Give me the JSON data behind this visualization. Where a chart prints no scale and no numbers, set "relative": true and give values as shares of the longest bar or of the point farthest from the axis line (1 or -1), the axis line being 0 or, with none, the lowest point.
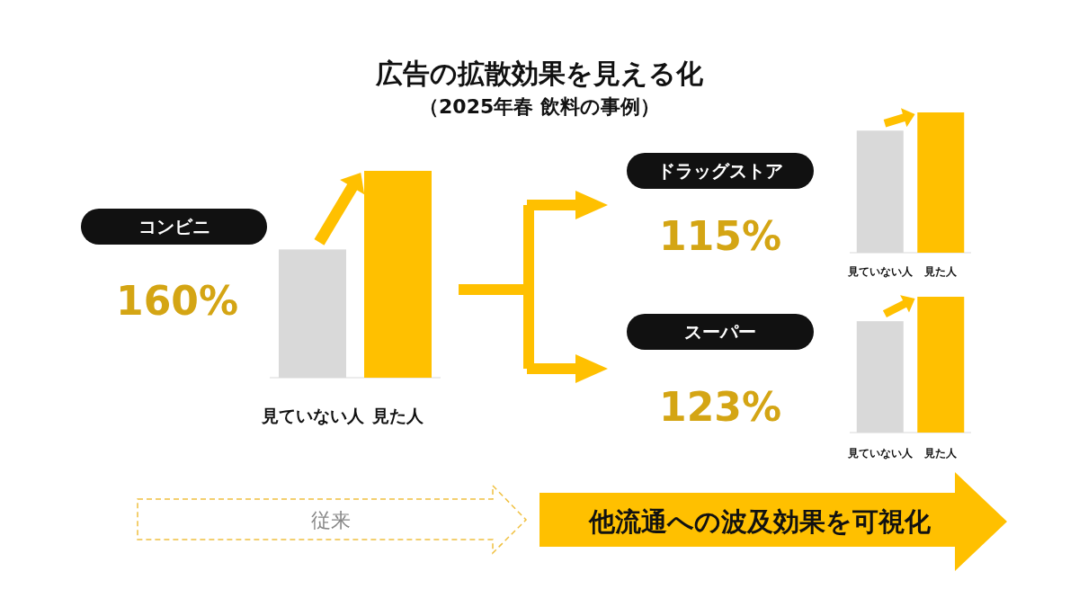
{
  "chart_data": [
    {
      "type": "bar",
      "title": "広告の拡散効果を見える化",
      "subtitle": "（2025年春 飲料の事例）",
      "categories": [
        "見ていない人",
        "見た人"
      ],
      "values": [
        0.62,
        1
      ],
      "colors": [
        "#d9d9d9",
        "#ffc000"
      ],
      "relative": true,
      "annotations": [
        "コンビニ",
        "160%"
      ]
    },
    {
      "type": "bar",
      "categories": [
        "見ていない人",
        "見た人"
      ],
      "values": [
        0.87,
        1
      ],
      "colors": [
        "#d9d9d9",
        "#ffc000"
      ],
      "relative": true,
      "annotations": [
        "ドラッグストア",
        "115%"
      ]
    },
    {
      "type": "bar",
      "categories": [
        "見ていない人",
        "見た人"
      ],
      "values": [
        0.82,
        1
      ],
      "colors": [
        "#d9d9d9",
        "#ffc000"
      ],
      "relative": true,
      "annotations": [
        "スーパー",
        "123%"
      ]
    },
    {
      "type": "other",
      "annotations": [
        "従来",
        "他流通への波及効果を可視化"
      ]
    }
  ]
}
